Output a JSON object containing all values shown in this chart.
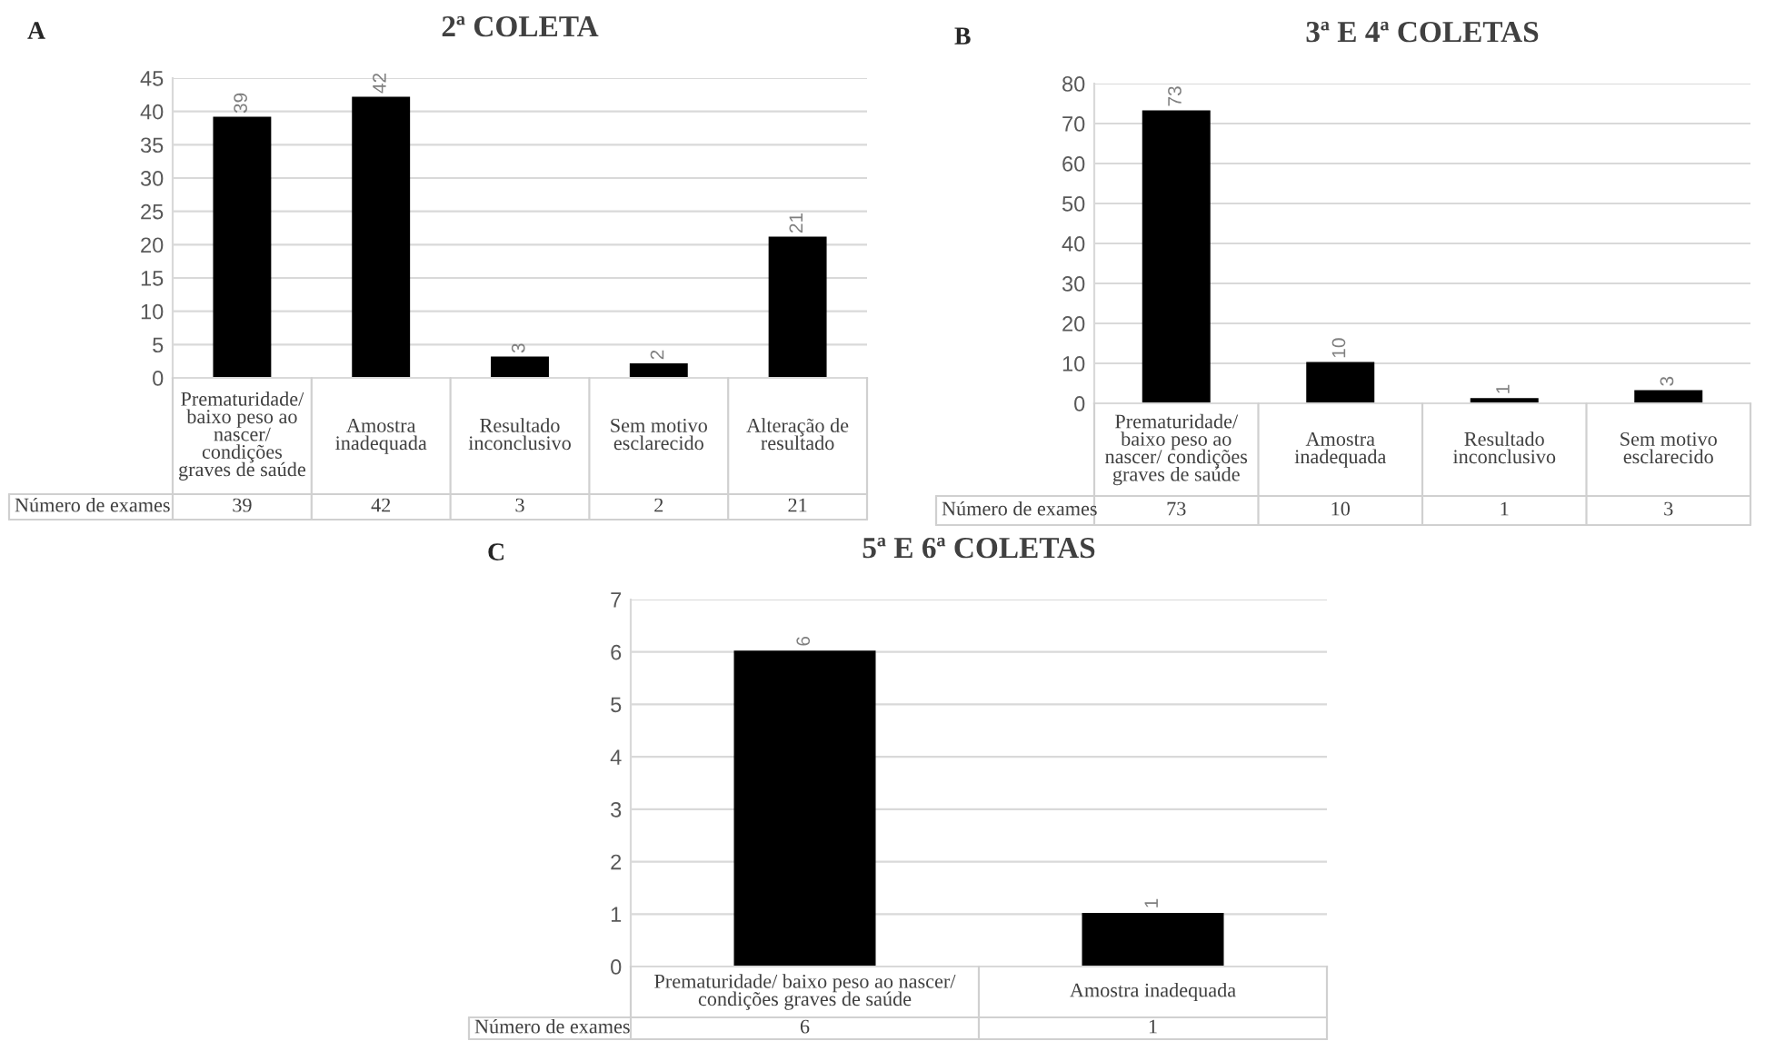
{
  "chart_data": [
    {
      "type": "bar",
      "title": "2ª COLETA",
      "annotations": [
        "A",
        "Número de exames",
        "39",
        "42",
        "3",
        "2",
        "21"
      ],
      "categories": [
        "Prematuridade/ baixo peso ao nascer/ condições graves de saúde",
        "Amostra inadequada",
        "Resultado inconclusivo",
        "Sem motivo esclarecido",
        "Alteração de resultado"
      ],
      "values": [
        39,
        42,
        3,
        2,
        21
      ],
      "value_labels": [
        "39",
        "42",
        "3",
        "2",
        "21"
      ],
      "color": "#000000",
      "ylim": [
        0,
        45
      ],
      "yticks": [
        0,
        5,
        10,
        15,
        20,
        25,
        30,
        35,
        40,
        45
      ],
      "grid": "y"
    },
    {
      "type": "bar",
      "title": "3ª E 4ª COLETAS",
      "annotations": [
        "B",
        "Número de exames",
        "73",
        "10",
        "1",
        "3"
      ],
      "categories": [
        "Prematuridade/ baixo peso ao nascer/ condições graves de saúde",
        "Amostra inadequada",
        "Resultado inconclusivo",
        "Sem motivo esclarecido"
      ],
      "values": [
        73,
        10,
        1,
        3
      ],
      "value_labels": [
        "73",
        "10",
        "1",
        "3"
      ],
      "color": "#000000",
      "ylim": [
        0,
        80
      ],
      "yticks": [
        0,
        10,
        20,
        30,
        40,
        50,
        60,
        70,
        80
      ],
      "grid": "y"
    },
    {
      "type": "bar",
      "title": "5ª E 6ª COLETAS",
      "annotations": [
        "C",
        "Número de exames",
        "6",
        "1"
      ],
      "categories": [
        "Prematuridade/ baixo peso ao nascer/ condições graves de saúde",
        "Amostra inadequada"
      ],
      "values": [
        6,
        1
      ],
      "value_labels": [
        "6",
        "1"
      ],
      "color": "#000000",
      "ylim": [
        0,
        7
      ],
      "yticks": [
        0,
        1,
        2,
        3,
        4,
        5,
        6,
        7
      ],
      "grid": "y"
    }
  ]
}
